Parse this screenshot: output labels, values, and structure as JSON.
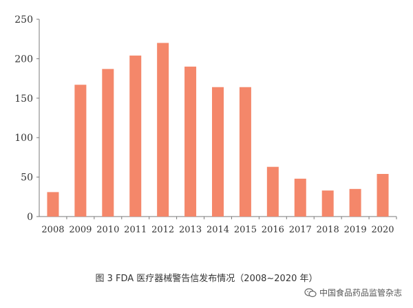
{
  "chart_data": {
    "type": "bar",
    "categories": [
      "2008",
      "2009",
      "2010",
      "2011",
      "2012",
      "2013",
      "2014",
      "2015",
      "2016",
      "2017",
      "2018",
      "2019",
      "2020"
    ],
    "values": [
      31,
      167,
      187,
      204,
      220,
      190,
      164,
      164,
      63,
      48,
      33,
      35,
      54
    ],
    "ylim": [
      0,
      250
    ],
    "yticks": [
      0,
      50,
      100,
      150,
      200,
      250
    ],
    "bar_color": "#f4876a",
    "axis_color": "#7a7a7a",
    "grid": false
  },
  "caption": "图 3   FDA 医疗器械警告信发布情况（2008~2020 年）",
  "watermark": {
    "text": "中国食品药品监管杂志",
    "icon": "wechat-icon"
  }
}
